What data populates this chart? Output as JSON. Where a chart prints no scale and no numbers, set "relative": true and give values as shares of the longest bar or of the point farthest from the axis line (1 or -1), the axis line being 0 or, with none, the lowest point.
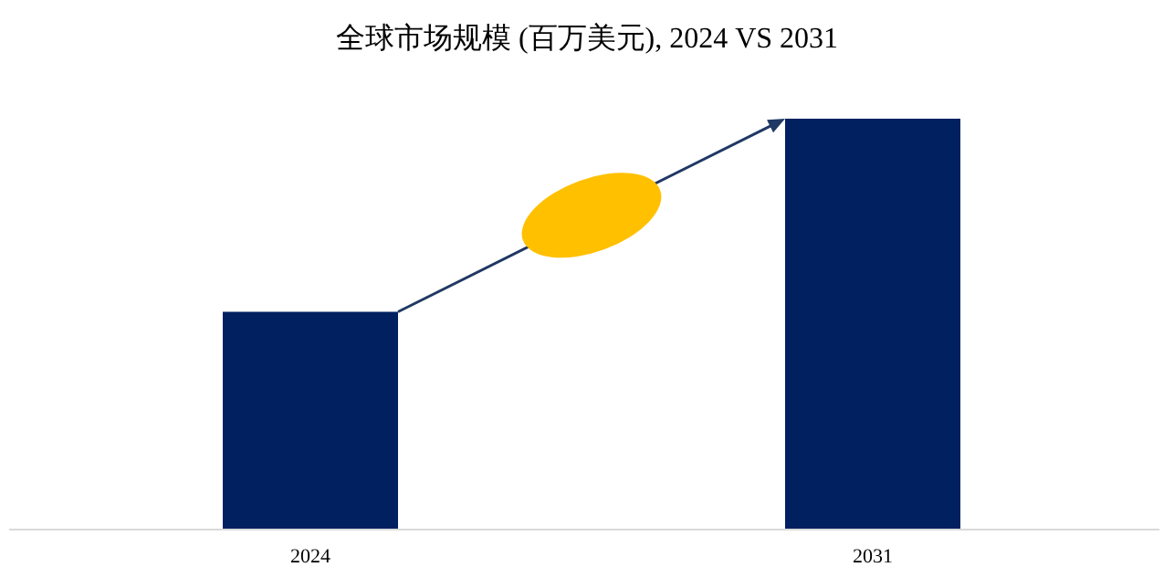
{
  "chart_data": {
    "type": "bar",
    "title": "全球市场规模 (百万美元), 2024 VS 2031",
    "categories": [
      "2024",
      "2031"
    ],
    "values": [
      0.53,
      1
    ],
    "color": "#002060",
    "relative": true
  }
}
